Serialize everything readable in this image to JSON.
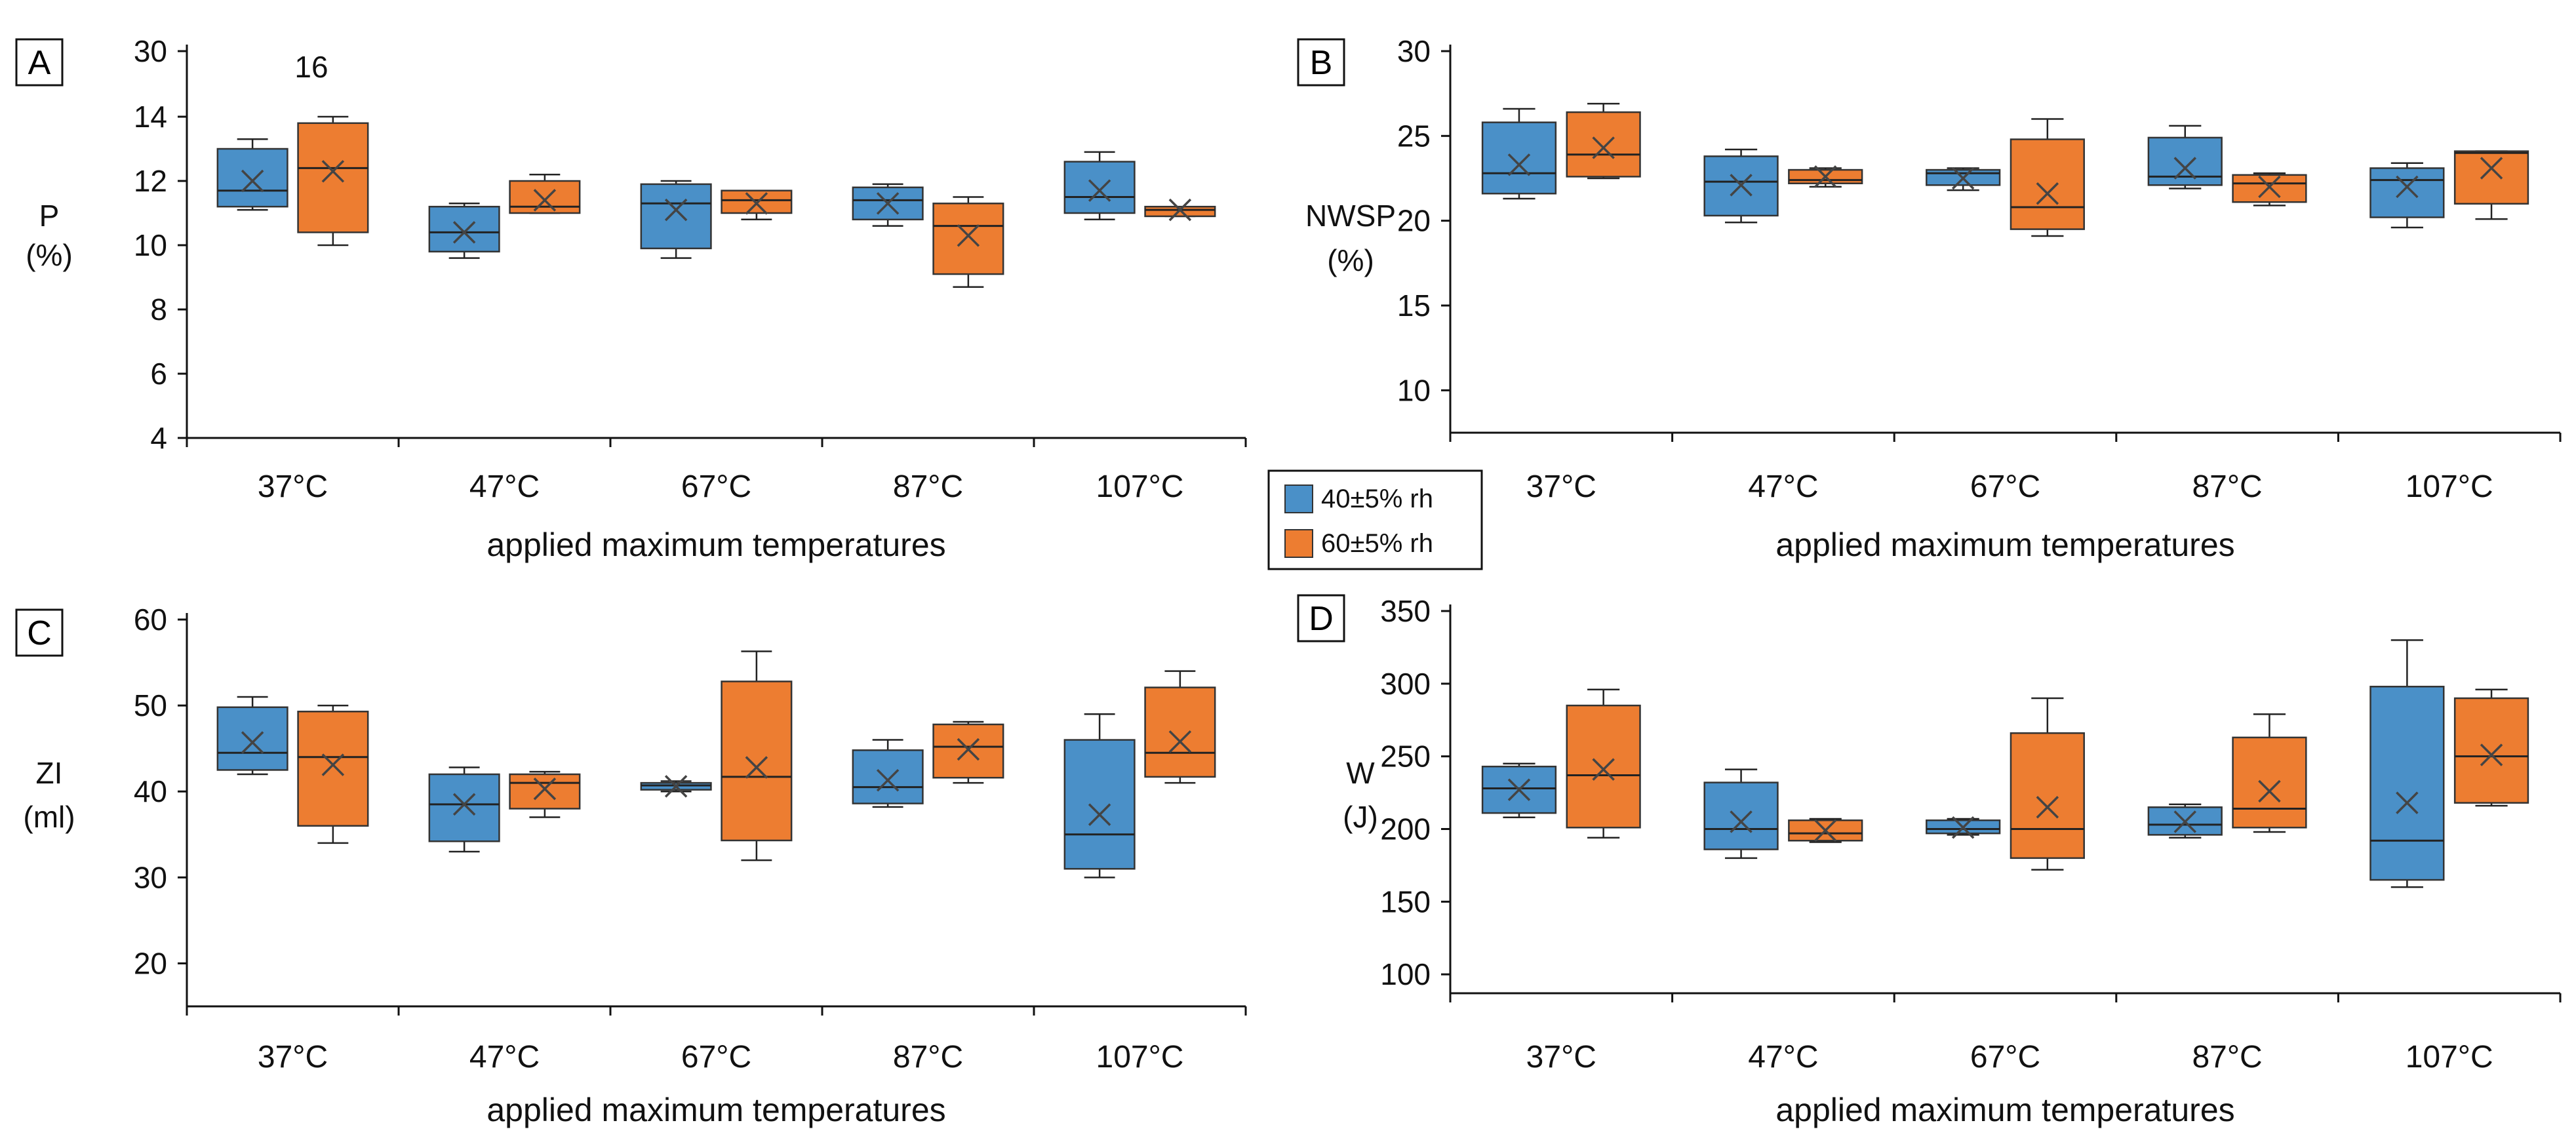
{
  "chart_data": [
    {
      "panel": "A",
      "type": "boxplot",
      "ylabel": "P",
      "yunit": "(%)",
      "xlabel": "applied maximum temperatures",
      "categories": [
        "37°C",
        "47°C",
        "67°C",
        "87°C",
        "107°C"
      ],
      "ylim": [
        4,
        16
      ],
      "yticks": [
        "4",
        "6",
        "8",
        "10",
        "12",
        "14",
        "30"
      ],
      "extra_label": "16",
      "axis_break": true,
      "series": [
        {
          "name": "40±5% rh",
          "color": "#4a90c8",
          "boxes": [
            {
              "min": 11.1,
              "q1": 11.2,
              "median": 11.7,
              "q3": 13.0,
              "max": 13.3,
              "mean": 12.0
            },
            {
              "min": 9.6,
              "q1": 9.8,
              "median": 10.4,
              "q3": 11.2,
              "max": 11.3,
              "mean": 10.4
            },
            {
              "min": 9.6,
              "q1": 9.9,
              "median": 11.3,
              "q3": 11.9,
              "max": 12.0,
              "mean": 11.1
            },
            {
              "min": 10.6,
              "q1": 10.8,
              "median": 11.4,
              "q3": 11.8,
              "max": 11.9,
              "mean": 11.3
            },
            {
              "min": 10.8,
              "q1": 11.0,
              "median": 11.5,
              "q3": 12.6,
              "max": 12.9,
              "mean": 11.7
            }
          ]
        },
        {
          "name": "60±5% rh",
          "color": "#ed7d31",
          "boxes": [
            {
              "min": 10.0,
              "q1": 10.4,
              "median": 12.4,
              "q3": 13.8,
              "max": 14.0,
              "mean": 12.3
            },
            {
              "min": 11.0,
              "q1": 11.0,
              "median": 11.2,
              "q3": 12.0,
              "max": 12.2,
              "mean": 11.4
            },
            {
              "min": 10.8,
              "q1": 11.0,
              "median": 11.4,
              "q3": 11.7,
              "max": 11.7,
              "mean": 11.3
            },
            {
              "min": 8.7,
              "q1": 9.1,
              "median": 10.6,
              "q3": 11.3,
              "max": 11.5,
              "mean": 10.3
            },
            {
              "min": 10.9,
              "q1": 10.9,
              "median": 11.1,
              "q3": 11.2,
              "max": 11.2,
              "mean": 11.1
            }
          ]
        }
      ]
    },
    {
      "panel": "B",
      "type": "boxplot",
      "ylabel": "NWSP",
      "yunit": "(%)",
      "xlabel": "applied maximum temperatures",
      "categories": [
        "37°C",
        "47°C",
        "67°C",
        "87°C",
        "107°C"
      ],
      "ylim": [
        7.5,
        30
      ],
      "yticks": [
        "10",
        "15",
        "20",
        "25",
        "30"
      ],
      "series": [
        {
          "name": "40±5% rh",
          "color": "#4a90c8",
          "boxes": [
            {
              "min": 21.3,
              "q1": 21.6,
              "median": 22.8,
              "q3": 25.8,
              "max": 26.6,
              "mean": 23.3
            },
            {
              "min": 19.9,
              "q1": 20.3,
              "median": 22.3,
              "q3": 23.8,
              "max": 24.2,
              "mean": 22.1
            },
            {
              "min": 21.8,
              "q1": 22.1,
              "median": 22.8,
              "q3": 23.0,
              "max": 23.1,
              "mean": 22.5
            },
            {
              "min": 21.9,
              "q1": 22.1,
              "median": 22.6,
              "q3": 24.9,
              "max": 25.6,
              "mean": 23.1
            },
            {
              "min": 19.6,
              "q1": 20.2,
              "median": 22.4,
              "q3": 23.1,
              "max": 23.4,
              "mean": 22.0
            }
          ]
        },
        {
          "name": "60±5% rh",
          "color": "#ed7d31",
          "boxes": [
            {
              "min": 22.5,
              "q1": 22.6,
              "median": 23.9,
              "q3": 26.4,
              "max": 26.9,
              "mean": 24.3
            },
            {
              "min": 22.0,
              "q1": 22.2,
              "median": 22.4,
              "q3": 23.0,
              "max": 23.1,
              "mean": 22.6
            },
            {
              "min": 19.1,
              "q1": 19.5,
              "median": 20.8,
              "q3": 24.8,
              "max": 26.0,
              "mean": 21.6
            },
            {
              "min": 20.9,
              "q1": 21.1,
              "median": 22.2,
              "q3": 22.7,
              "max": 22.8,
              "mean": 22.0
            },
            {
              "min": 20.1,
              "q1": 21.0,
              "median": 24.0,
              "q3": 24.1,
              "max": 24.1,
              "mean": 23.1
            }
          ]
        }
      ]
    },
    {
      "panel": "C",
      "type": "boxplot",
      "ylabel": "ZI",
      "yunit": "(ml)",
      "xlabel": "applied maximum temperatures",
      "categories": [
        "37°C",
        "47°C",
        "67°C",
        "87°C",
        "107°C"
      ],
      "ylim": [
        15,
        60
      ],
      "yticks": [
        "20",
        "30",
        "40",
        "50",
        "60"
      ],
      "series": [
        {
          "name": "40±5% rh",
          "color": "#4a90c8",
          "boxes": [
            {
              "min": 42.0,
              "q1": 42.5,
              "median": 44.5,
              "q3": 49.8,
              "max": 51.0,
              "mean": 45.7
            },
            {
              "min": 33.0,
              "q1": 34.2,
              "median": 38.5,
              "q3": 42.0,
              "max": 42.8,
              "mean": 38.5
            },
            {
              "min": 40.0,
              "q1": 40.2,
              "median": 40.7,
              "q3": 41.0,
              "max": 41.2,
              "mean": 40.6
            },
            {
              "min": 38.2,
              "q1": 38.6,
              "median": 40.5,
              "q3": 44.8,
              "max": 46.0,
              "mean": 41.3
            },
            {
              "min": 30.0,
              "q1": 31.0,
              "median": 35.0,
              "q3": 46.0,
              "max": 49.0,
              "mean": 37.3
            }
          ]
        },
        {
          "name": "60±5% rh",
          "color": "#ed7d31",
          "boxes": [
            {
              "min": 34.0,
              "q1": 36.0,
              "median": 44.0,
              "q3": 49.3,
              "max": 50.0,
              "mean": 43.1
            },
            {
              "min": 37.0,
              "q1": 38.0,
              "median": 41.0,
              "q3": 42.0,
              "max": 42.3,
              "mean": 40.3
            },
            {
              "min": 32.0,
              "q1": 34.3,
              "median": 41.7,
              "q3": 52.8,
              "max": 56.3,
              "mean": 42.8
            },
            {
              "min": 41.0,
              "q1": 41.6,
              "median": 45.2,
              "q3": 47.8,
              "max": 48.1,
              "mean": 44.9
            },
            {
              "min": 41.0,
              "q1": 41.7,
              "median": 44.5,
              "q3": 52.1,
              "max": 54.0,
              "mean": 45.8
            }
          ]
        }
      ]
    },
    {
      "panel": "D",
      "type": "boxplot",
      "ylabel": "W",
      "yunit": "(J)",
      "xlabel": "applied maximum temperatures",
      "categories": [
        "37°C",
        "47°C",
        "67°C",
        "87°C",
        "107°C"
      ],
      "ylim": [
        87,
        350
      ],
      "yticks": [
        "100",
        "150",
        "200",
        "250",
        "300",
        "350"
      ],
      "series": [
        {
          "name": "40±5% rh",
          "color": "#4a90c8",
          "boxes": [
            {
              "min": 208,
              "q1": 211,
              "median": 228,
              "q3": 243,
              "max": 245,
              "mean": 227
            },
            {
              "min": 180,
              "q1": 186,
              "median": 200,
              "q3": 232,
              "max": 241,
              "mean": 205
            },
            {
              "min": 196,
              "q1": 197,
              "median": 200,
              "q3": 206,
              "max": 207,
              "mean": 201
            },
            {
              "min": 194,
              "q1": 196,
              "median": 203,
              "q3": 215,
              "max": 217,
              "mean": 205
            },
            {
              "min": 160,
              "q1": 165,
              "median": 192,
              "q3": 298,
              "max": 330,
              "mean": 218
            }
          ]
        },
        {
          "name": "60±5% rh",
          "color": "#ed7d31",
          "boxes": [
            {
              "min": 194,
              "q1": 201,
              "median": 237,
              "q3": 285,
              "max": 296,
              "mean": 241
            },
            {
              "min": 191,
              "q1": 192,
              "median": 197,
              "q3": 206,
              "max": 207,
              "mean": 199
            },
            {
              "min": 172,
              "q1": 180,
              "median": 200,
              "q3": 266,
              "max": 290,
              "mean": 215
            },
            {
              "min": 198,
              "q1": 201,
              "median": 214,
              "q3": 263,
              "max": 279,
              "mean": 226
            },
            {
              "min": 216,
              "q1": 218,
              "median": 250,
              "q3": 290,
              "max": 296,
              "mean": 251
            }
          ]
        }
      ]
    }
  ],
  "legend": {
    "items": [
      {
        "label": "40±5% rh",
        "color": "#4a90c8"
      },
      {
        "label": "60±5% rh",
        "color": "#ed7d31"
      }
    ]
  }
}
